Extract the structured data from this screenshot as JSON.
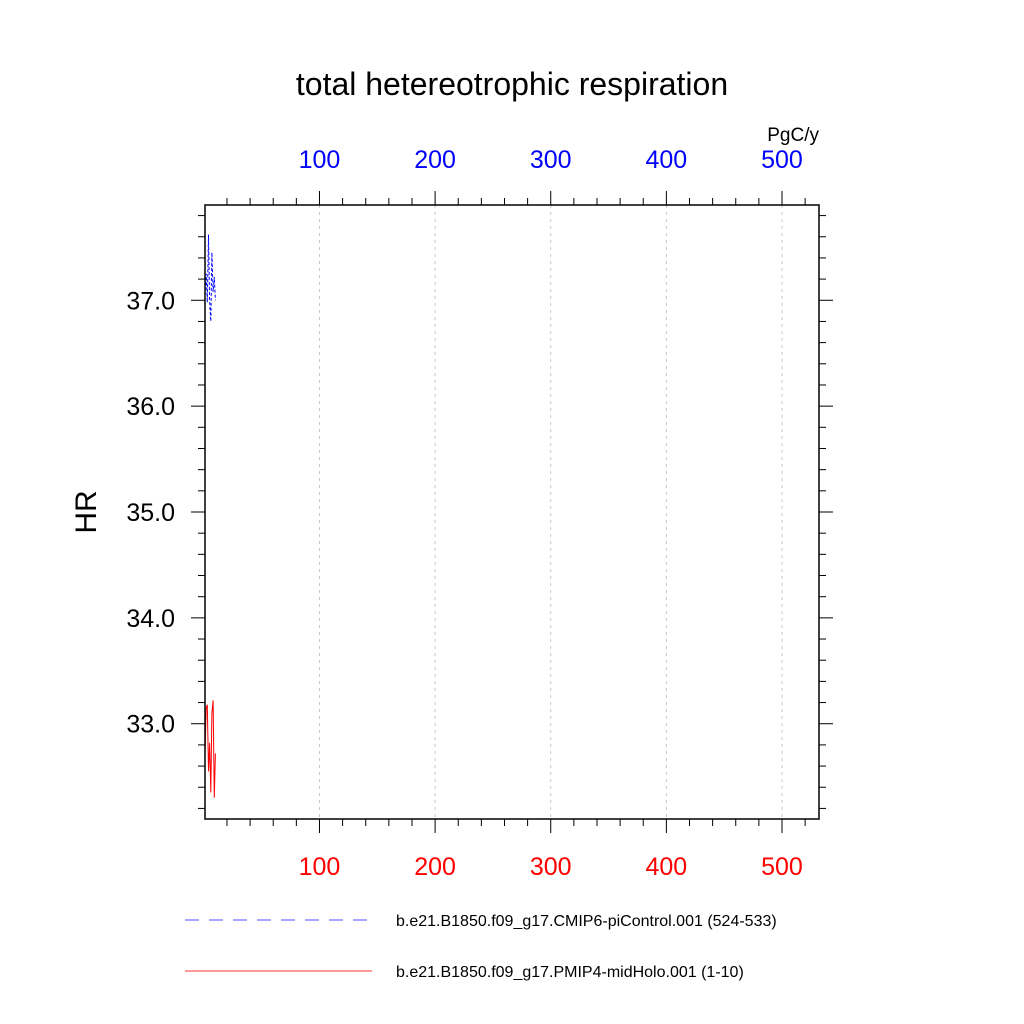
{
  "chart_data": {
    "type": "line",
    "title": "total hetereotrophic respiration",
    "ylabel": "HR",
    "units": "PgC/y",
    "ylim": [
      32.1,
      37.9
    ],
    "yticks": [
      33.0,
      34.0,
      35.0,
      36.0,
      37.0
    ],
    "ytick_labels": [
      "33.0",
      "34.0",
      "35.0",
      "36.0",
      "37.0"
    ],
    "grid": "vertical dashed",
    "top_axis": {
      "xlim": [
        1,
        532
      ],
      "ticks": [
        100,
        200,
        300,
        400,
        500
      ],
      "tick_labels": [
        "100",
        "200",
        "300",
        "400",
        "500"
      ],
      "color": "#0000ff"
    },
    "bottom_axis": {
      "xlim": [
        1,
        532
      ],
      "ticks": [
        100,
        200,
        300,
        400,
        500
      ],
      "tick_labels": [
        "100",
        "200",
        "300",
        "400",
        "500"
      ],
      "color": "#ff0000"
    },
    "series": [
      {
        "name": "b.e21.B1850.f09_g17.CMIP6-piControl.001 (524-533)",
        "axis": "top",
        "color": "#0000ff",
        "dash": "dashed",
        "x": [
          1,
          2,
          3,
          4,
          5,
          6,
          7,
          8,
          9,
          10
        ],
        "values": [
          37.05,
          37.25,
          36.98,
          37.62,
          37.0,
          36.8,
          37.45,
          37.08,
          37.22,
          37.0
        ]
      },
      {
        "name": "b.e21.B1850.f09_g17.PMIP4-midHolo.001 (1-10)",
        "axis": "bottom",
        "color": "#ff0000",
        "dash": "solid",
        "x": [
          1,
          2,
          3,
          4,
          5,
          6,
          7,
          8,
          9,
          10
        ],
        "values": [
          32.7,
          33.15,
          33.18,
          32.55,
          32.82,
          32.35,
          33.1,
          33.22,
          32.3,
          32.72
        ]
      }
    ]
  }
}
